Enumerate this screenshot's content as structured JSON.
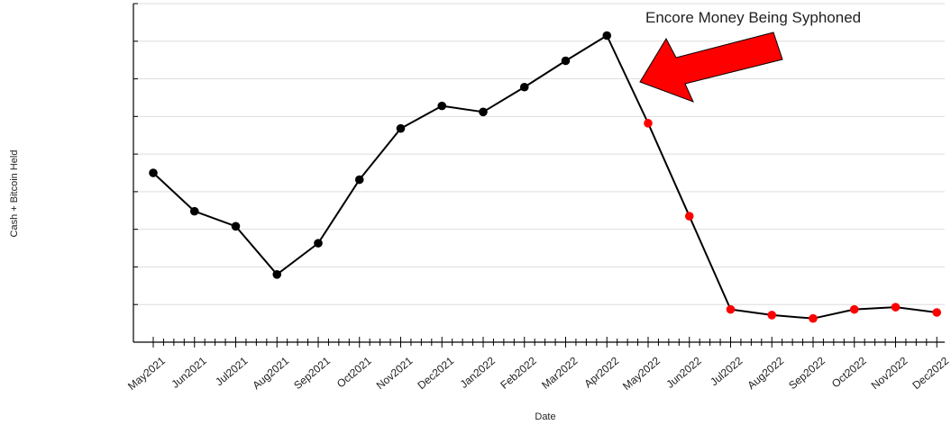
{
  "chart_data": {
    "type": "line",
    "title": "",
    "xlabel": "Date",
    "ylabel": "Cash + Bitcoin Held",
    "categories": [
      "May2021",
      "Jun2021",
      "Jul2021",
      "Aug2021",
      "Sep2021",
      "Oct2021",
      "Nov2021",
      "Dec2021",
      "Jan2022",
      "Feb2022",
      "Mar2022",
      "Apr2022",
      "May2022",
      "Jun2022",
      "Jul2022",
      "Aug2022",
      "Sep2022",
      "Oct2022",
      "Nov2022",
      "Dec2022"
    ],
    "values": [
      45,
      34.8,
      30.8,
      18,
      26.3,
      43.2,
      56.8,
      62.8,
      61.2,
      67.8,
      74.8,
      81.5,
      58.2,
      33.5,
      8.7,
      7.2,
      6.3,
      8.7,
      9.3,
      7.9
    ],
    "point_colors": [
      "#000000",
      "#000000",
      "#000000",
      "#000000",
      "#000000",
      "#000000",
      "#000000",
      "#000000",
      "#000000",
      "#000000",
      "#000000",
      "#000000",
      "#ff0000",
      "#ff0000",
      "#ff0000",
      "#ff0000",
      "#ff0000",
      "#ff0000",
      "#ff0000",
      "#ff0000"
    ],
    "ylim": [
      0,
      90
    ],
    "y_tick_labels_shown": false,
    "grid": "horizontal",
    "line_color": "#000000",
    "annotation": {
      "text": "Encore Money Being Syphoned",
      "arrow_color": "#ff0000",
      "points_to": "Apr2022"
    }
  }
}
